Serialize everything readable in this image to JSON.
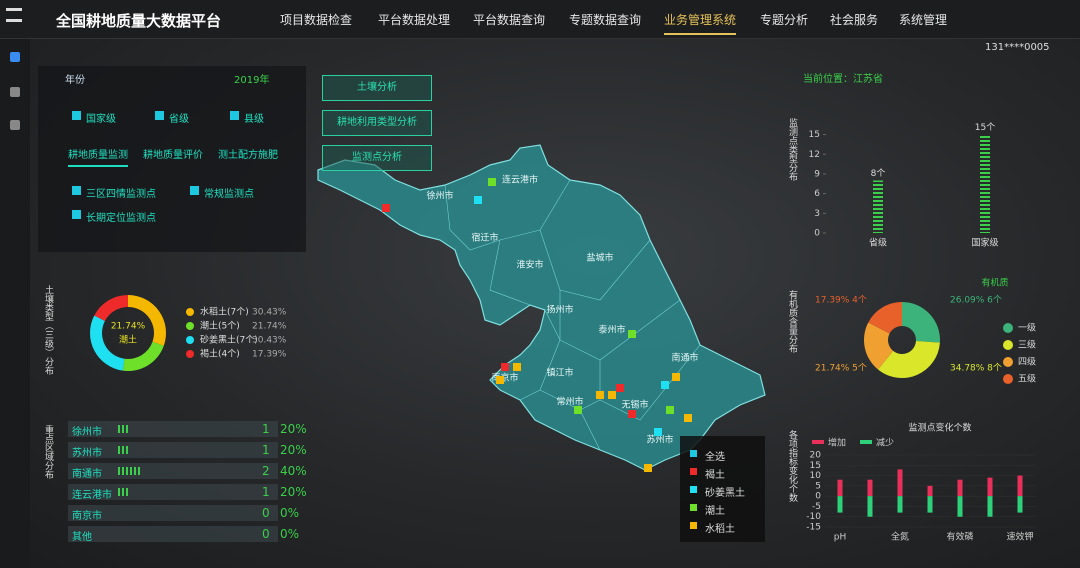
{
  "header": {
    "title": "全国耕地质量大数据平台",
    "nav": [
      "项目数据检查",
      "平台数据处理",
      "平台数据查询",
      "专题数据查询",
      "业务管理系统",
      "专题分析",
      "社会服务",
      "系统管理"
    ],
    "user": "131****0005"
  },
  "filter_panel": {
    "label": "年份",
    "year": "2019年",
    "levels": [
      "国家级",
      "省级",
      "县级"
    ],
    "tabs": [
      "耕地质量监测",
      "耕地质量评价",
      "测土配方施肥"
    ],
    "point_types": [
      "三区四情监测点",
      "常规监测点",
      "长期定位监测点"
    ]
  },
  "soil_panel": {
    "side_label": "土壤类型（三级）分布",
    "chart_data": {
      "type": "donut",
      "center_label": "潮土",
      "categories": [
        "水稻土(7个)",
        "潮土(5个)",
        "砂姜黑土(7个)",
        "褐土(4个)"
      ],
      "values": [
        30.43,
        21.74,
        30.43,
        17.39
      ],
      "value_labels": [
        "30.43%",
        "21.74%",
        "30.43%",
        "17.39%"
      ],
      "colors": [
        "#f5b800",
        "#6ee02a",
        "#1ee0f0",
        "#ef2a2a"
      ]
    }
  },
  "region_panel": {
    "side_label": "重点区域分布",
    "rows": [
      {
        "name": "徐州市",
        "count": 1,
        "percent": "20%"
      },
      {
        "name": "苏州市",
        "count": 1,
        "percent": "20%"
      },
      {
        "name": "南通市",
        "count": 2,
        "percent": "40%"
      },
      {
        "name": "连云港市",
        "count": 1,
        "percent": "20%"
      },
      {
        "name": "南京市",
        "count": 0,
        "percent": "0%"
      },
      {
        "name": "其他",
        "count": 0,
        "percent": "0%"
      }
    ]
  },
  "map": {
    "buttons": [
      "土壤分析",
      "耕地利用类型分析",
      "监测点分析"
    ],
    "regions": [
      "连云港市",
      "徐州市",
      "宿迁市",
      "淮安市",
      "盐城市",
      "扬州市",
      "泰州市",
      "南通市",
      "南京市",
      "镇江市",
      "常州市",
      "无锡市",
      "苏州市"
    ],
    "legend": [
      "全选",
      "褐土",
      "砂姜黑土",
      "潮土",
      "水稻土"
    ]
  },
  "location": "当前位置：江苏省",
  "level_chart": {
    "side_label": "监测点类型分布",
    "chart_data": {
      "type": "bar",
      "categories": [
        "省级",
        "国家级"
      ],
      "values": [
        8,
        15
      ],
      "value_labels": [
        "8个",
        "15个"
      ],
      "color": "#3ad04a",
      "ylim": [
        0,
        16
      ],
      "yticks": [
        0,
        3,
        6,
        9,
        12,
        15
      ]
    }
  },
  "organic_chart": {
    "side_label": "有机质含量分布",
    "chart_data": {
      "type": "donut",
      "title": "有机质",
      "categories": [
        "一级",
        "三级",
        "四级",
        "五级"
      ],
      "values": [
        26.09,
        34.78,
        21.74,
        17.39
      ],
      "value_labels": [
        "26.09%  6个",
        "34.78%  8个",
        "21.74%  5个",
        "17.39%  4个"
      ],
      "colors": [
        "#3cb37a",
        "#d9e62a",
        "#f0a030",
        "#e8602a"
      ]
    }
  },
  "change_chart": {
    "side_label": "各项指标变化个数",
    "chart_data": {
      "type": "bar",
      "title": "监测点变化个数",
      "categories": [
        "pH",
        null,
        "全氮",
        null,
        "有效磷",
        null,
        "速效钾"
      ],
      "series": [
        {
          "name": "增加",
          "color": "#e8305a",
          "values": [
            8,
            8,
            13,
            5,
            8,
            9,
            10
          ]
        },
        {
          "name": "减少",
          "color": "#2ed07a",
          "values": [
            -8,
            -10,
            -8,
            -8,
            -10,
            -10,
            -8
          ]
        }
      ],
      "ylim": [
        -15,
        20
      ],
      "yticks": [
        -15,
        -10,
        -5,
        0,
        5,
        10,
        15,
        20
      ]
    }
  }
}
